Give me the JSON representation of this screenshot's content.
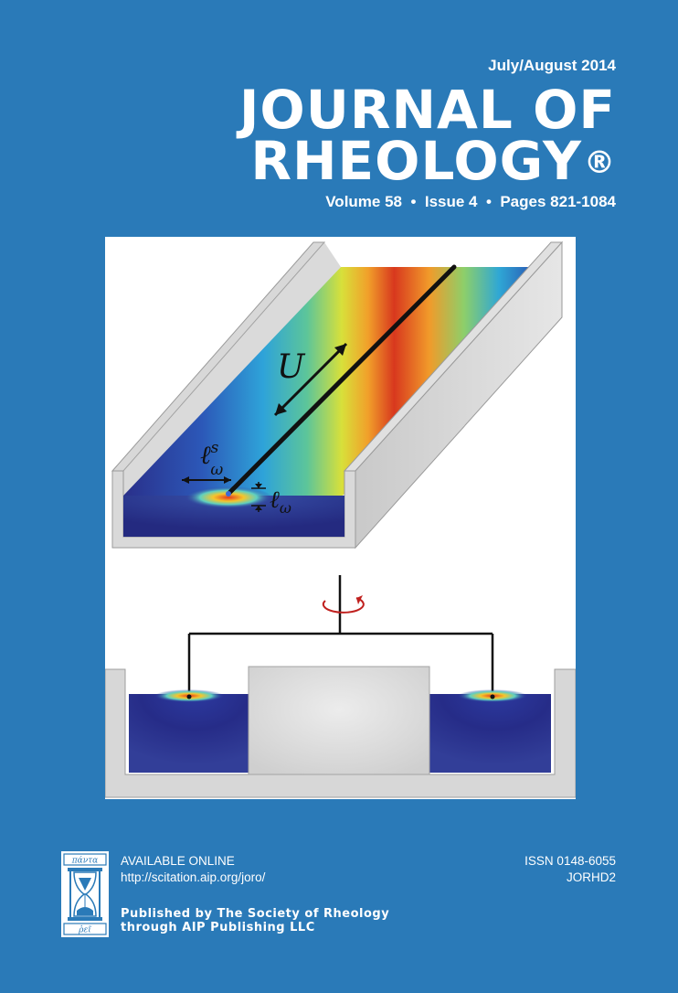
{
  "header": {
    "date": "July/August 2014",
    "title_line1": "JOURNAL OF",
    "title_line2": "RHEOLOGY",
    "registered_mark": "®",
    "volume_line": "Volume 58  •  Issue 4  •  Pages 821-1084"
  },
  "cover_art": {
    "label_velocity": "U",
    "label_ls_base": "ℓ",
    "label_ls_sup": "s",
    "label_ls_sub": "ω",
    "label_l_base": "ℓ",
    "label_l_sub": "ω"
  },
  "logo": {
    "top_text": "πάντα",
    "bottom_text": "ῥεῖ"
  },
  "footer": {
    "available_online": "AVAILABLE ONLINE",
    "url": "http://scitation.aip.org/joro/",
    "issn": "ISSN 0148-6055",
    "code": "JORHD2",
    "publisher_line1": "Published by The Society of Rheology",
    "publisher_line2": "through AIP Publishing LLC"
  },
  "colors": {
    "background": "#2a7ab8",
    "text": "#ffffff"
  }
}
